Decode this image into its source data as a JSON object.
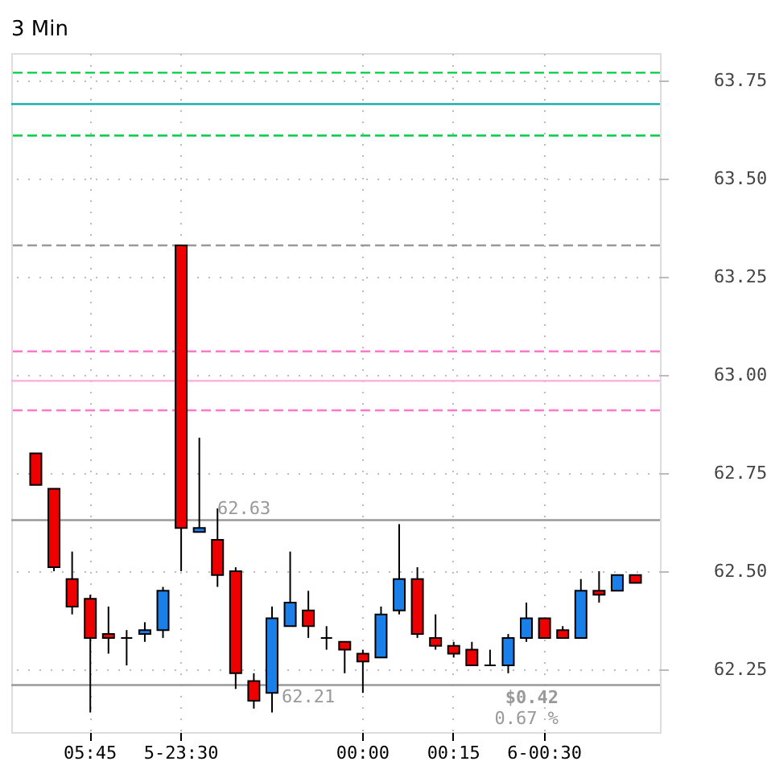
{
  "chart_data": {
    "type": "candlestick",
    "title": "3 Min",
    "categories": [
      null,
      null,
      null,
      "05:45",
      null,
      null,
      null,
      null,
      "5-23:30",
      null,
      null,
      null,
      null,
      null,
      null,
      null,
      null,
      null,
      "00:00",
      null,
      null,
      null,
      null,
      "00:15",
      null,
      null,
      null,
      null,
      "6-00:30",
      null,
      null,
      null,
      null,
      null
    ],
    "ohlc": [
      [
        62.8,
        62.8,
        62.72,
        62.72
      ],
      [
        62.71,
        62.71,
        62.5,
        62.51
      ],
      [
        62.48,
        62.55,
        62.39,
        62.41
      ],
      [
        62.43,
        62.44,
        62.14,
        62.33
      ],
      [
        62.34,
        62.41,
        62.29,
        62.33
      ],
      [
        62.33,
        62.35,
        62.26,
        62.33
      ],
      [
        62.34,
        62.37,
        62.32,
        62.35
      ],
      [
        62.35,
        62.46,
        62.33,
        62.45
      ],
      [
        63.33,
        63.33,
        62.5,
        62.61
      ],
      [
        62.6,
        62.84,
        62.6,
        62.61
      ],
      [
        62.58,
        62.66,
        62.46,
        62.49
      ],
      [
        62.5,
        62.51,
        62.2,
        62.24
      ],
      [
        62.22,
        62.24,
        62.15,
        62.17
      ],
      [
        62.19,
        62.41,
        62.14,
        62.38
      ],
      [
        62.36,
        62.55,
        62.36,
        62.42
      ],
      [
        62.4,
        62.45,
        62.33,
        62.36
      ],
      [
        62.33,
        62.36,
        62.3,
        62.33
      ],
      [
        62.32,
        62.32,
        62.24,
        62.3
      ],
      [
        62.29,
        62.3,
        62.19,
        62.27
      ],
      [
        62.28,
        62.41,
        62.28,
        62.39
      ],
      [
        62.4,
        62.62,
        62.39,
        62.48
      ],
      [
        62.48,
        62.51,
        62.33,
        62.34
      ],
      [
        62.33,
        62.39,
        62.3,
        62.31
      ],
      [
        62.31,
        62.32,
        62.28,
        62.29
      ],
      [
        62.3,
        62.32,
        62.26,
        62.26
      ],
      [
        62.26,
        62.3,
        62.26,
        62.26
      ],
      [
        62.26,
        62.34,
        62.24,
        62.33
      ],
      [
        62.33,
        62.42,
        62.32,
        62.38
      ],
      [
        62.38,
        62.38,
        62.33,
        62.33
      ],
      [
        62.35,
        62.36,
        62.33,
        62.33
      ],
      [
        62.33,
        62.48,
        62.33,
        62.45
      ],
      [
        62.45,
        62.5,
        62.42,
        62.44
      ],
      [
        62.45,
        62.49,
        62.45,
        62.49
      ],
      [
        62.49,
        62.49,
        62.47,
        62.47
      ]
    ],
    "ylim": [
      62.09,
      63.82
    ],
    "yticks": [
      62.25,
      {
        "value": 62.5,
        "label": "62.50"
      },
      62.75,
      {
        "value": 63,
        "label": "63.00"
      },
      63.25,
      {
        "value": 63.5,
        "label": "63.50"
      },
      63.75
    ],
    "ref_lines": [
      {
        "axis": "y",
        "value": 63.77,
        "color": "#00cc44",
        "line_style": "dashed"
      },
      {
        "axis": "y",
        "value": 63.69,
        "color": "#00aaaa",
        "line_style": "solid"
      },
      {
        "axis": "y",
        "value": 63.61,
        "color": "#00cc44",
        "line_style": "dashed"
      },
      {
        "axis": "y",
        "value": 63.33,
        "color": "#999999",
        "line_style": "dashed"
      },
      {
        "axis": "y",
        "value": 63.06,
        "color": "#ff77cc",
        "line_style": "dashed"
      },
      {
        "axis": "y",
        "value": 62.985,
        "color": "#ffaadd",
        "line_style": "solid"
      },
      {
        "axis": "y",
        "value": 62.91,
        "color": "#ff77cc",
        "line_style": "dashed"
      },
      {
        "axis": "y",
        "value": 62.63,
        "label": "62.63",
        "color": "#999999",
        "line_style": "solid"
      },
      {
        "axis": "y",
        "value": 62.21,
        "label": "62.21",
        "color": "#999999",
        "line_style": "solid"
      }
    ],
    "annotations": [
      "$0.42",
      "0.67 %"
    ],
    "grid": true
  }
}
